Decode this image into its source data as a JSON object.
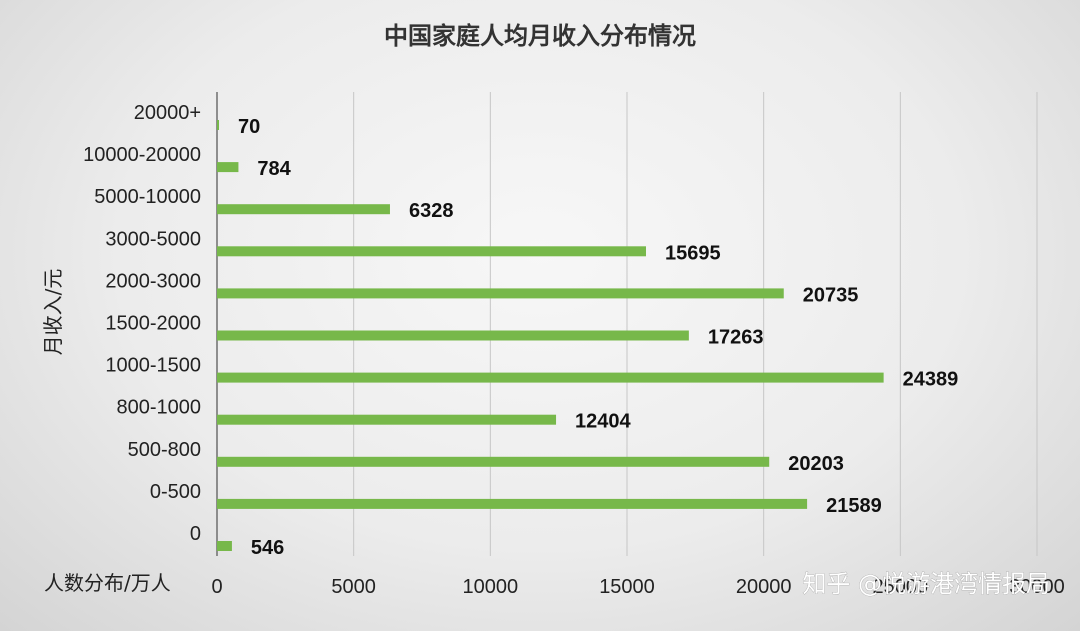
{
  "chart_data": {
    "type": "bar",
    "orientation": "horizontal",
    "title": "中国家庭人均月收入分布情况",
    "ylabel": "月收入/元",
    "xlabel": "人数分布/万人",
    "categories": [
      "0",
      "0-500",
      "500-800",
      "800-1000",
      "1000-1500",
      "1500-2000",
      "2000-3000",
      "3000-5000",
      "5000-10000",
      "10000-20000",
      "20000+"
    ],
    "values": [
      546,
      21589,
      20203,
      12404,
      24389,
      17263,
      20735,
      15695,
      6328,
      784,
      70
    ],
    "xlim": [
      0,
      30000
    ],
    "x_ticks": [
      "0",
      "5000",
      "10000",
      "15000",
      "20000",
      "25000",
      "30000"
    ],
    "bar_color": "#77b84a",
    "grid": "vertical",
    "legend": "none",
    "data_labels": true
  },
  "watermark": "知乎 @悦游港湾情报局"
}
